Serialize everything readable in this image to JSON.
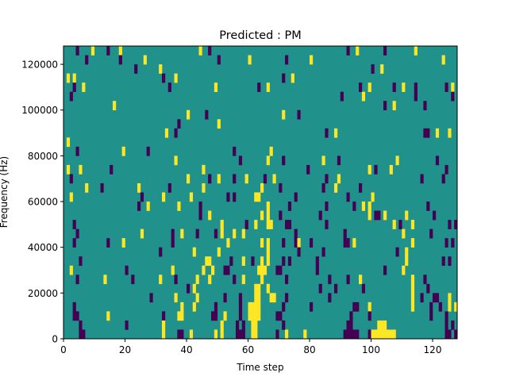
{
  "chart_data": {
    "type": "heatmap",
    "title": "Predicted : PM",
    "xlabel": "Time step",
    "ylabel": "Frequency (Hz)",
    "xlim": [
      0,
      128
    ],
    "ylim": [
      0,
      128000
    ],
    "n_cols": 128,
    "n_rows": 32,
    "row_height_hz": 4000,
    "x_ticks": [
      0,
      20,
      40,
      60,
      80,
      100,
      120
    ],
    "x_tick_labels": [
      "0",
      "20",
      "40",
      "60",
      "80",
      "100",
      "120"
    ],
    "y_ticks": [
      0,
      20000,
      40000,
      60000,
      80000,
      100000,
      120000
    ],
    "y_tick_labels": [
      "0",
      "20000",
      "40000",
      "60000",
      "80000",
      "100000",
      "120000"
    ],
    "colors": {
      "low": "#440154",
      "mid": "#21918c",
      "high": "#fde725"
    },
    "background_value": 0,
    "cells": [
      [
        4,
        31,
        -1
      ],
      [
        9,
        31,
        1
      ],
      [
        14,
        31,
        -1
      ],
      [
        18,
        31,
        1
      ],
      [
        44,
        31,
        1
      ],
      [
        47,
        31,
        -1
      ],
      [
        92,
        31,
        -1
      ],
      [
        95,
        31,
        1
      ],
      [
        104,
        31,
        -1
      ],
      [
        114,
        31,
        1
      ],
      [
        7,
        30,
        -1
      ],
      [
        18,
        30,
        -1
      ],
      [
        26,
        30,
        1
      ],
      [
        50,
        30,
        -1
      ],
      [
        60,
        30,
        1
      ],
      [
        72,
        30,
        -1
      ],
      [
        80,
        30,
        1
      ],
      [
        123,
        30,
        1
      ],
      [
        23,
        29,
        -1
      ],
      [
        31,
        29,
        1
      ],
      [
        100,
        29,
        -1
      ],
      [
        103,
        29,
        1
      ],
      [
        1,
        28,
        1
      ],
      [
        3,
        28,
        1
      ],
      [
        32,
        28,
        -1
      ],
      [
        36,
        28,
        1
      ],
      [
        71,
        28,
        -1
      ],
      [
        74,
        28,
        1
      ],
      [
        3,
        27,
        -1
      ],
      [
        6,
        27,
        1
      ],
      [
        34,
        27,
        -1
      ],
      [
        49,
        27,
        1
      ],
      [
        63,
        27,
        -1
      ],
      [
        66,
        27,
        1
      ],
      [
        96,
        27,
        -1
      ],
      [
        99,
        27,
        1
      ],
      [
        107,
        27,
        -1
      ],
      [
        110,
        27,
        1
      ],
      [
        114,
        27,
        -1
      ],
      [
        124,
        27,
        -1
      ],
      [
        126,
        27,
        1
      ],
      [
        2,
        26,
        -1
      ],
      [
        90,
        26,
        -1
      ],
      [
        97,
        26,
        1
      ],
      [
        114,
        26,
        -1
      ],
      [
        126,
        26,
        -1
      ],
      [
        16,
        25,
        1
      ],
      [
        104,
        25,
        -1
      ],
      [
        107,
        25,
        1
      ],
      [
        117,
        25,
        -1
      ],
      [
        40,
        24,
        1
      ],
      [
        46,
        24,
        -1
      ],
      [
        71,
        24,
        1
      ],
      [
        76,
        24,
        -1
      ],
      [
        37,
        23,
        -1
      ],
      [
        50,
        23,
        1
      ],
      [
        33,
        22,
        1
      ],
      [
        36,
        22,
        -1
      ],
      [
        85,
        22,
        -1
      ],
      [
        88,
        22,
        1
      ],
      [
        117,
        22,
        -1
      ],
      [
        118,
        22,
        -1
      ],
      [
        121,
        22,
        1
      ],
      [
        125,
        22,
        1
      ],
      [
        1,
        21,
        1
      ],
      [
        4,
        20,
        -1
      ],
      [
        19,
        20,
        1
      ],
      [
        27,
        20,
        -1
      ],
      [
        55,
        20,
        -1
      ],
      [
        67,
        20,
        1
      ],
      [
        36,
        19,
        1
      ],
      [
        57,
        19,
        -1
      ],
      [
        66,
        19,
        1
      ],
      [
        71,
        19,
        -1
      ],
      [
        84,
        19,
        1
      ],
      [
        89,
        19,
        -1
      ],
      [
        108,
        19,
        1
      ],
      [
        121,
        19,
        -1
      ],
      [
        1,
        18,
        1
      ],
      [
        5,
        18,
        1
      ],
      [
        15,
        18,
        -1
      ],
      [
        45,
        18,
        1
      ],
      [
        79,
        18,
        -1
      ],
      [
        99,
        18,
        1
      ],
      [
        101,
        18,
        -1
      ],
      [
        106,
        18,
        1
      ],
      [
        124,
        18,
        -1
      ],
      [
        2,
        17,
        -1
      ],
      [
        40,
        17,
        1
      ],
      [
        47,
        17,
        -1
      ],
      [
        50,
        17,
        1
      ],
      [
        55,
        17,
        -1
      ],
      [
        59,
        17,
        1
      ],
      [
        65,
        17,
        -1
      ],
      [
        68,
        17,
        1
      ],
      [
        85,
        17,
        -1
      ],
      [
        89,
        17,
        1
      ],
      [
        116,
        17,
        -1
      ],
      [
        123,
        17,
        -1
      ],
      [
        7,
        16,
        1
      ],
      [
        12,
        16,
        -1
      ],
      [
        24,
        16,
        1
      ],
      [
        34,
        16,
        -1
      ],
      [
        45,
        16,
        1
      ],
      [
        64,
        16,
        1
      ],
      [
        70,
        16,
        -1
      ],
      [
        84,
        16,
        -1
      ],
      [
        88,
        16,
        1
      ],
      [
        96,
        16,
        -1
      ],
      [
        2,
        15,
        1
      ],
      [
        25,
        15,
        -1
      ],
      [
        32,
        15,
        1
      ],
      [
        41,
        15,
        1
      ],
      [
        53,
        15,
        -1
      ],
      [
        55,
        15,
        -1
      ],
      [
        62,
        15,
        1
      ],
      [
        63,
        15,
        1
      ],
      [
        75,
        15,
        -1
      ],
      [
        92,
        15,
        -1
      ],
      [
        100,
        15,
        1
      ],
      [
        24,
        14,
        -1
      ],
      [
        27,
        14,
        1
      ],
      [
        37,
        14,
        1
      ],
      [
        44,
        14,
        -1
      ],
      [
        66,
        14,
        1
      ],
      [
        73,
        14,
        -1
      ],
      [
        85,
        14,
        -1
      ],
      [
        94,
        14,
        -1
      ],
      [
        97,
        14,
        1
      ],
      [
        99,
        14,
        1
      ],
      [
        118,
        14,
        -1
      ],
      [
        44,
        13,
        -1
      ],
      [
        47,
        13,
        1
      ],
      [
        64,
        13,
        1
      ],
      [
        66,
        13,
        1
      ],
      [
        70,
        13,
        -1
      ],
      [
        83,
        13,
        -1
      ],
      [
        99,
        13,
        1
      ],
      [
        101,
        13,
        -1
      ],
      [
        102,
        13,
        -1
      ],
      [
        104,
        13,
        1
      ],
      [
        111,
        13,
        1
      ],
      [
        120,
        13,
        -1
      ],
      [
        3,
        12,
        -1
      ],
      [
        51,
        12,
        1
      ],
      [
        59,
        12,
        -1
      ],
      [
        62,
        12,
        1
      ],
      [
        66,
        12,
        1
      ],
      [
        67,
        12,
        1
      ],
      [
        72,
        12,
        -1
      ],
      [
        73,
        12,
        -1
      ],
      [
        85,
        12,
        -1
      ],
      [
        107,
        12,
        1
      ],
      [
        109,
        12,
        -1
      ],
      [
        113,
        12,
        1
      ],
      [
        125,
        12,
        -1
      ],
      [
        127,
        12,
        -1
      ],
      [
        4,
        11,
        -1
      ],
      [
        25,
        11,
        1
      ],
      [
        35,
        11,
        -1
      ],
      [
        38,
        11,
        1
      ],
      [
        43,
        11,
        -1
      ],
      [
        49,
        11,
        -1
      ],
      [
        51,
        11,
        1
      ],
      [
        55,
        11,
        1
      ],
      [
        58,
        11,
        1
      ],
      [
        75,
        11,
        -1
      ],
      [
        91,
        11,
        -1
      ],
      [
        110,
        11,
        1
      ],
      [
        119,
        11,
        -1
      ],
      [
        3,
        10,
        -1
      ],
      [
        14,
        10,
        -1
      ],
      [
        19,
        10,
        1
      ],
      [
        35,
        10,
        -1
      ],
      [
        53,
        10,
        1
      ],
      [
        64,
        10,
        1
      ],
      [
        66,
        10,
        1
      ],
      [
        71,
        10,
        -1
      ],
      [
        75,
        10,
        -1
      ],
      [
        76,
        10,
        1
      ],
      [
        80,
        10,
        -1
      ],
      [
        91,
        10,
        -1
      ],
      [
        92,
        10,
        -1
      ],
      [
        94,
        10,
        1
      ],
      [
        113,
        10,
        1
      ],
      [
        124,
        10,
        -1
      ],
      [
        126,
        10,
        -1
      ],
      [
        31,
        9,
        -1
      ],
      [
        42,
        9,
        1
      ],
      [
        50,
        9,
        1
      ],
      [
        66,
        9,
        1
      ],
      [
        76,
        9,
        -1
      ],
      [
        84,
        9,
        -1
      ],
      [
        108,
        9,
        -1
      ],
      [
        111,
        9,
        1
      ],
      [
        5,
        8,
        -1
      ],
      [
        46,
        8,
        1
      ],
      [
        47,
        8,
        1
      ],
      [
        54,
        8,
        -1
      ],
      [
        58,
        8,
        1
      ],
      [
        61,
        8,
        -1
      ],
      [
        64,
        8,
        1
      ],
      [
        66,
        8,
        1
      ],
      [
        71,
        8,
        -1
      ],
      [
        73,
        8,
        -1
      ],
      [
        82,
        8,
        -1
      ],
      [
        111,
        8,
        1
      ],
      [
        123,
        8,
        -1
      ],
      [
        125,
        8,
        -1
      ],
      [
        2,
        7,
        1
      ],
      [
        20,
        7,
        -1
      ],
      [
        35,
        7,
        1
      ],
      [
        45,
        7,
        1
      ],
      [
        48,
        7,
        1
      ],
      [
        52,
        7,
        -1
      ],
      [
        53,
        7,
        -1
      ],
      [
        63,
        7,
        1
      ],
      [
        64,
        7,
        1
      ],
      [
        65,
        7,
        1
      ],
      [
        69,
        7,
        -1
      ],
      [
        70,
        7,
        -1
      ],
      [
        82,
        7,
        -1
      ],
      [
        104,
        7,
        -1
      ],
      [
        110,
        7,
        1
      ],
      [
        4,
        6,
        -1
      ],
      [
        13,
        6,
        1
      ],
      [
        22,
        6,
        -1
      ],
      [
        31,
        6,
        1
      ],
      [
        36,
        6,
        -1
      ],
      [
        43,
        6,
        1
      ],
      [
        47,
        6,
        1
      ],
      [
        55,
        6,
        -1
      ],
      [
        58,
        6,
        1
      ],
      [
        64,
        6,
        1
      ],
      [
        72,
        6,
        -1
      ],
      [
        86,
        6,
        -1
      ],
      [
        92,
        6,
        -1
      ],
      [
        96,
        6,
        1
      ],
      [
        113,
        6,
        1
      ],
      [
        117,
        6,
        -1
      ],
      [
        40,
        5,
        -1
      ],
      [
        42,
        5,
        1
      ],
      [
        62,
        5,
        1
      ],
      [
        63,
        5,
        1
      ],
      [
        66,
        5,
        1
      ],
      [
        83,
        5,
        -1
      ],
      [
        88,
        5,
        -1
      ],
      [
        97,
        5,
        -1
      ],
      [
        113,
        5,
        1
      ],
      [
        118,
        5,
        -1
      ],
      [
        28,
        4,
        -1
      ],
      [
        36,
        4,
        1
      ],
      [
        43,
        4,
        1
      ],
      [
        52,
        4,
        -1
      ],
      [
        57,
        4,
        -1
      ],
      [
        62,
        4,
        1
      ],
      [
        63,
        4,
        1
      ],
      [
        67,
        4,
        1
      ],
      [
        68,
        4,
        1
      ],
      [
        72,
        4,
        -1
      ],
      [
        86,
        4,
        -1
      ],
      [
        113,
        4,
        1
      ],
      [
        116,
        4,
        -1
      ],
      [
        120,
        4,
        -1
      ],
      [
        121,
        4,
        -1
      ],
      [
        125,
        4,
        1
      ],
      [
        3,
        3,
        -1
      ],
      [
        38,
        3,
        1
      ],
      [
        42,
        3,
        1
      ],
      [
        49,
        3,
        -1
      ],
      [
        57,
        3,
        -1
      ],
      [
        60,
        3,
        1
      ],
      [
        61,
        3,
        1
      ],
      [
        62,
        3,
        1
      ],
      [
        63,
        3,
        1
      ],
      [
        71,
        3,
        -1
      ],
      [
        80,
        3,
        -1
      ],
      [
        94,
        3,
        -1
      ],
      [
        95,
        3,
        -1
      ],
      [
        99,
        3,
        1
      ],
      [
        113,
        3,
        1
      ],
      [
        119,
        3,
        -1
      ],
      [
        122,
        3,
        -1
      ],
      [
        125,
        3,
        1
      ],
      [
        127,
        3,
        1
      ],
      [
        3,
        2,
        -1
      ],
      [
        4,
        2,
        -1
      ],
      [
        14,
        2,
        1
      ],
      [
        32,
        2,
        -1
      ],
      [
        37,
        2,
        1
      ],
      [
        38,
        2,
        1
      ],
      [
        48,
        2,
        -1
      ],
      [
        49,
        2,
        -1
      ],
      [
        52,
        2,
        1
      ],
      [
        57,
        2,
        -1
      ],
      [
        60,
        2,
        1
      ],
      [
        61,
        2,
        1
      ],
      [
        62,
        2,
        1
      ],
      [
        63,
        2,
        1
      ],
      [
        69,
        2,
        -1
      ],
      [
        70,
        2,
        -1
      ],
      [
        93,
        2,
        -1
      ],
      [
        99,
        2,
        -1
      ],
      [
        119,
        2,
        -1
      ],
      [
        124,
        2,
        -1
      ],
      [
        5,
        1,
        -1
      ],
      [
        20,
        1,
        -1
      ],
      [
        32,
        1,
        1
      ],
      [
        51,
        1,
        1
      ],
      [
        56,
        1,
        -1
      ],
      [
        58,
        1,
        -1
      ],
      [
        61,
        1,
        1
      ],
      [
        62,
        1,
        1
      ],
      [
        71,
        1,
        -1
      ],
      [
        92,
        1,
        -1
      ],
      [
        93,
        1,
        -1
      ],
      [
        102,
        1,
        1
      ],
      [
        103,
        1,
        1
      ],
      [
        104,
        1,
        1
      ],
      [
        124,
        1,
        -1
      ],
      [
        126,
        1,
        -1
      ],
      [
        5,
        0,
        -1
      ],
      [
        6,
        0,
        -1
      ],
      [
        32,
        0,
        1
      ],
      [
        37,
        0,
        -1
      ],
      [
        38,
        0,
        -1
      ],
      [
        41,
        0,
        1
      ],
      [
        49,
        0,
        1
      ],
      [
        51,
        0,
        1
      ],
      [
        56,
        0,
        -1
      ],
      [
        57,
        0,
        -1
      ],
      [
        58,
        0,
        -1
      ],
      [
        61,
        0,
        1
      ],
      [
        62,
        0,
        1
      ],
      [
        69,
        0,
        -1
      ],
      [
        72,
        0,
        1
      ],
      [
        78,
        0,
        1
      ],
      [
        91,
        0,
        -1
      ],
      [
        92,
        0,
        -1
      ],
      [
        93,
        0,
        -1
      ],
      [
        94,
        0,
        -1
      ],
      [
        95,
        0,
        -1
      ],
      [
        99,
        0,
        -1
      ],
      [
        100,
        0,
        1
      ],
      [
        101,
        0,
        1
      ],
      [
        102,
        0,
        1
      ],
      [
        103,
        0,
        1
      ],
      [
        104,
        0,
        1
      ],
      [
        105,
        0,
        1
      ],
      [
        106,
        0,
        1
      ],
      [
        107,
        0,
        1
      ],
      [
        124,
        0,
        -1
      ],
      [
        125,
        0,
        -1
      ],
      [
        127,
        0,
        -1
      ]
    ]
  }
}
